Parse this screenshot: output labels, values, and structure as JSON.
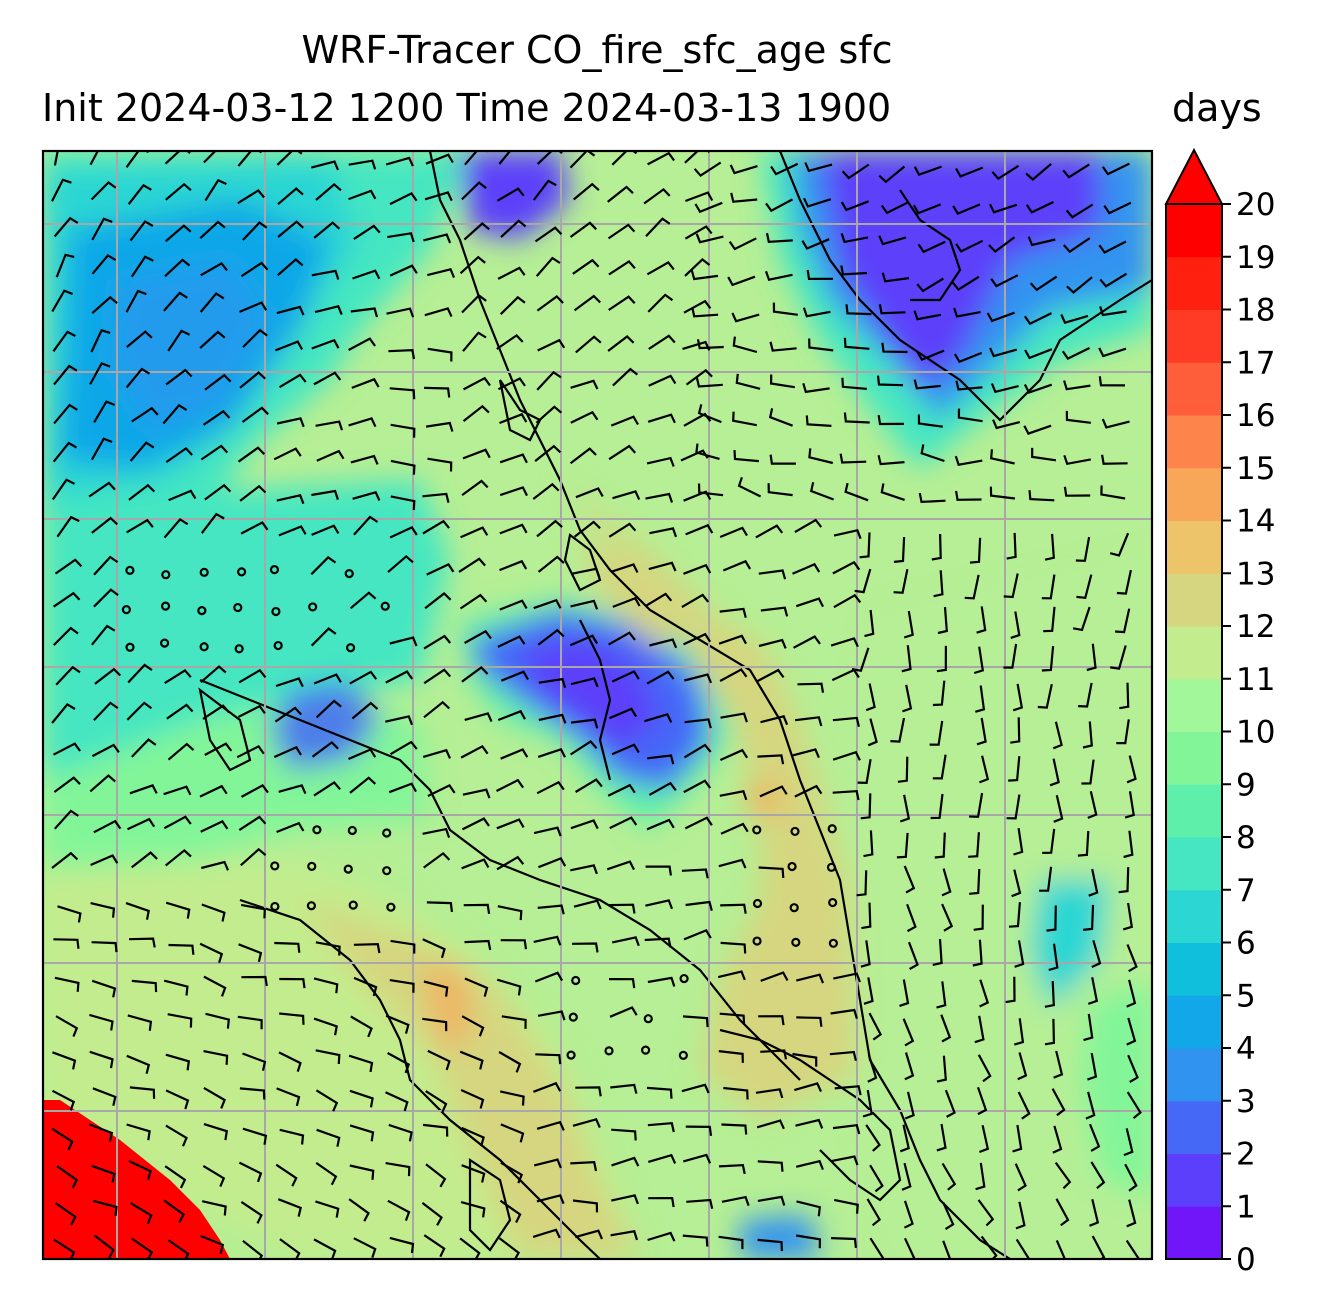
{
  "title_line1": "WRF-Tracer CO_fire_sfc_age sfc",
  "title_line2": "Init 2024-03-12 1200 Time 2024-03-13 1900",
  "units": "days",
  "chart_data": {
    "type": "heatmap",
    "title": "WRF-Tracer CO_fire_sfc_age sfc",
    "subtitle": "Init 2024-03-12 1200 Time 2024-03-13 1900",
    "colorbar_label": "days",
    "colorbar_ticks": [
      "0",
      "1",
      "2",
      "3",
      "4",
      "5",
      "6",
      "7",
      "8",
      "9",
      "10",
      "11",
      "12",
      "13",
      "14",
      "15",
      "16",
      "17",
      "18",
      "19",
      "20"
    ],
    "colorbar_range": [
      0,
      20
    ],
    "colorbar_extend": "max",
    "colors": [
      "#7216fa",
      "#5b3ffa",
      "#4568f7",
      "#3193f0",
      "#11a7e8",
      "#10bfdc",
      "#2bd6d3",
      "#45e6c1",
      "#5ef0ab",
      "#82f599",
      "#a2f79a",
      "#c2ec8d",
      "#d5d67f",
      "#eec46b",
      "#f8a657",
      "#fd844a",
      "#fe5e39",
      "#ff3b25",
      "#ff2010",
      "#ff0000"
    ],
    "overlay": "wind barbs and calm-wind circles over coastlines with lat/lon grid",
    "grid": true
  }
}
